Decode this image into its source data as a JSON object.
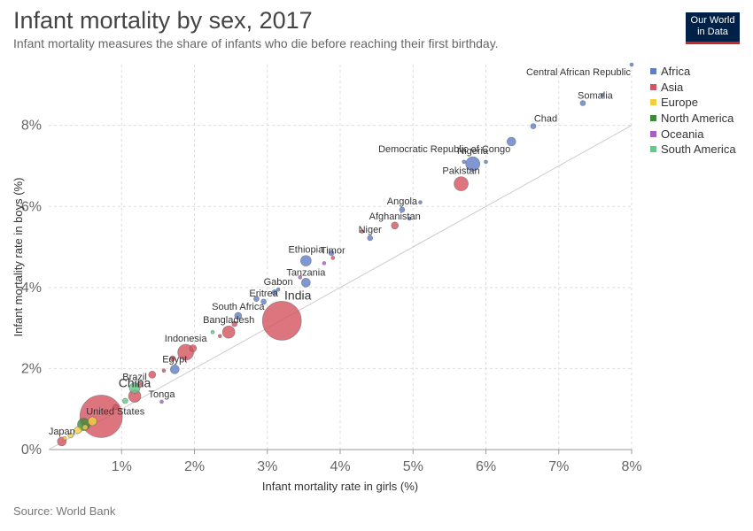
{
  "header": {
    "title": "Infant mortality by sex, 2017",
    "subtitle": "Infant mortality measures the share of infants who die before reaching their first birthday."
  },
  "logo": {
    "line1": "Our World",
    "line2": "in Data"
  },
  "footer": {
    "source": "Source: World Bank"
  },
  "colors": {
    "Africa": "#5f7ec9",
    "Asia": "#d5525f",
    "Europe": "#f2cf41",
    "North America": "#3e8a3a",
    "Oceania": "#a660c0",
    "South America": "#61c98a"
  },
  "chart_data": {
    "type": "scatter",
    "title": "Infant mortality by sex, 2017",
    "xlabel": "Infant mortality rate in girls (%)",
    "ylabel": "Infant mortality rate in boys (%)",
    "xlim": [
      0,
      8
    ],
    "ylim": [
      0,
      9.5
    ],
    "x_ticks": [
      "1%",
      "2%",
      "3%",
      "4%",
      "5%",
      "6%",
      "7%",
      "8%"
    ],
    "y_ticks": [
      "0%",
      "2%",
      "4%",
      "6%",
      "8%"
    ],
    "grid": true,
    "legend_position": "top-right",
    "legend": [
      "Africa",
      "Asia",
      "Europe",
      "North America",
      "Oceania",
      "South America"
    ],
    "reference_line": [
      [
        0,
        0
      ],
      [
        8,
        8
      ]
    ],
    "points": [
      {
        "label": "Central African Republic",
        "region": "Africa",
        "x": 8.0,
        "y": 9.5,
        "size": 2
      },
      {
        "label": "Somalia",
        "region": "Africa",
        "x": 7.33,
        "y": 8.55,
        "size": 3
      },
      {
        "label": "",
        "region": "Africa",
        "x": 7.6,
        "y": 8.75,
        "size": 2
      },
      {
        "label": "Chad",
        "region": "Africa",
        "x": 6.65,
        "y": 7.98,
        "size": 3
      },
      {
        "label": "Democratic Republic of Congo",
        "region": "Africa",
        "x": 6.35,
        "y": 7.6,
        "size": 5
      },
      {
        "label": "Nigeria",
        "region": "Africa",
        "x": 5.82,
        "y": 7.05,
        "size": 8
      },
      {
        "label": "",
        "region": "Africa",
        "x": 5.7,
        "y": 7.1,
        "size": 2
      },
      {
        "label": "",
        "region": "Africa",
        "x": 6.0,
        "y": 7.1,
        "size": 2
      },
      {
        "label": "Pakistan",
        "region": "Asia",
        "x": 5.66,
        "y": 6.56,
        "size": 8
      },
      {
        "label": "Angola",
        "region": "Africa",
        "x": 4.85,
        "y": 5.92,
        "size": 3
      },
      {
        "label": "",
        "region": "Africa",
        "x": 5.1,
        "y": 6.1,
        "size": 2
      },
      {
        "label": "Afghanistan",
        "region": "Asia",
        "x": 4.75,
        "y": 5.53,
        "size": 4
      },
      {
        "label": "",
        "region": "Africa",
        "x": 4.95,
        "y": 5.7,
        "size": 2
      },
      {
        "label": "Niger",
        "region": "Africa",
        "x": 4.41,
        "y": 5.22,
        "size": 3
      },
      {
        "label": "",
        "region": "Asia",
        "x": 4.3,
        "y": 5.38,
        "size": 2
      },
      {
        "label": "Ethiopia",
        "region": "Africa",
        "x": 3.53,
        "y": 4.66,
        "size": 6
      },
      {
        "label": "",
        "region": "Africa",
        "x": 3.88,
        "y": 4.85,
        "size": 3
      },
      {
        "label": "Timor",
        "region": "Asia",
        "x": 3.9,
        "y": 4.73,
        "size": 2
      },
      {
        "label": "",
        "region": "Oceania",
        "x": 3.78,
        "y": 4.6,
        "size": 2
      },
      {
        "label": "Tanzania",
        "region": "Africa",
        "x": 3.53,
        "y": 4.12,
        "size": 5
      },
      {
        "label": "",
        "region": "Oceania",
        "x": 3.45,
        "y": 4.25,
        "size": 2
      },
      {
        "label": "Gabon",
        "region": "Africa",
        "x": 3.15,
        "y": 3.95,
        "size": 2
      },
      {
        "label": "",
        "region": "Africa",
        "x": 3.1,
        "y": 3.88,
        "size": 3
      },
      {
        "label": "Eritrea",
        "region": "Africa",
        "x": 2.95,
        "y": 3.65,
        "size": 3
      },
      {
        "label": "",
        "region": "Africa",
        "x": 2.85,
        "y": 3.72,
        "size": 3
      },
      {
        "label": "India",
        "region": "Asia",
        "x": 3.2,
        "y": 3.18,
        "size": 22
      },
      {
        "label": "South Africa",
        "region": "Africa",
        "x": 2.6,
        "y": 3.3,
        "size": 4
      },
      {
        "label": "Bangladesh",
        "region": "Asia",
        "x": 2.47,
        "y": 2.9,
        "size": 7
      },
      {
        "label": "",
        "region": "Asia",
        "x": 2.55,
        "y": 3.1,
        "size": 3
      },
      {
        "label": "",
        "region": "South America",
        "x": 2.25,
        "y": 2.9,
        "size": 2
      },
      {
        "label": "",
        "region": "Asia",
        "x": 2.35,
        "y": 2.8,
        "size": 2
      },
      {
        "label": "Indonesia",
        "region": "Asia",
        "x": 1.88,
        "y": 2.4,
        "size": 9
      },
      {
        "label": "",
        "region": "Asia",
        "x": 1.98,
        "y": 2.5,
        "size": 4
      },
      {
        "label": "",
        "region": "Asia",
        "x": 1.7,
        "y": 2.25,
        "size": 3
      },
      {
        "label": "Egypt",
        "region": "Africa",
        "x": 1.73,
        "y": 1.98,
        "size": 5
      },
      {
        "label": "",
        "region": "Asia",
        "x": 1.42,
        "y": 1.85,
        "size": 4
      },
      {
        "label": "",
        "region": "Asia",
        "x": 1.58,
        "y": 1.95,
        "size": 2
      },
      {
        "label": "Brazil",
        "region": "South America",
        "x": 1.18,
        "y": 1.52,
        "size": 6
      },
      {
        "label": "",
        "region": "Asia",
        "x": 1.25,
        "y": 1.6,
        "size": 3
      },
      {
        "label": "Tonga",
        "region": "Oceania",
        "x": 1.55,
        "y": 1.18,
        "size": 2
      },
      {
        "label": "China",
        "region": "Asia",
        "x": 1.18,
        "y": 1.32,
        "size": 7
      },
      {
        "label": "",
        "region": "South America",
        "x": 1.05,
        "y": 1.2,
        "size": 3
      },
      {
        "label": "",
        "region": "Asia",
        "x": 0.92,
        "y": 1.05,
        "size": 3
      },
      {
        "label": "United States",
        "region": "Asia",
        "x": 0.72,
        "y": 0.82,
        "size": 24
      },
      {
        "label": "",
        "region": "North America",
        "x": 0.48,
        "y": 0.62,
        "size": 7
      },
      {
        "label": "",
        "region": "Europe",
        "x": 0.6,
        "y": 0.7,
        "size": 5
      },
      {
        "label": "",
        "region": "Europe",
        "x": 0.4,
        "y": 0.48,
        "size": 4
      },
      {
        "label": "",
        "region": "Europe",
        "x": 0.5,
        "y": 0.55,
        "size": 3
      },
      {
        "label": "Japan",
        "region": "Asia",
        "x": 0.18,
        "y": 0.2,
        "size": 5
      },
      {
        "label": "",
        "region": "Europe",
        "x": 0.3,
        "y": 0.35,
        "size": 3
      },
      {
        "label": "",
        "region": "Europe",
        "x": 0.22,
        "y": 0.28,
        "size": 2
      }
    ]
  }
}
